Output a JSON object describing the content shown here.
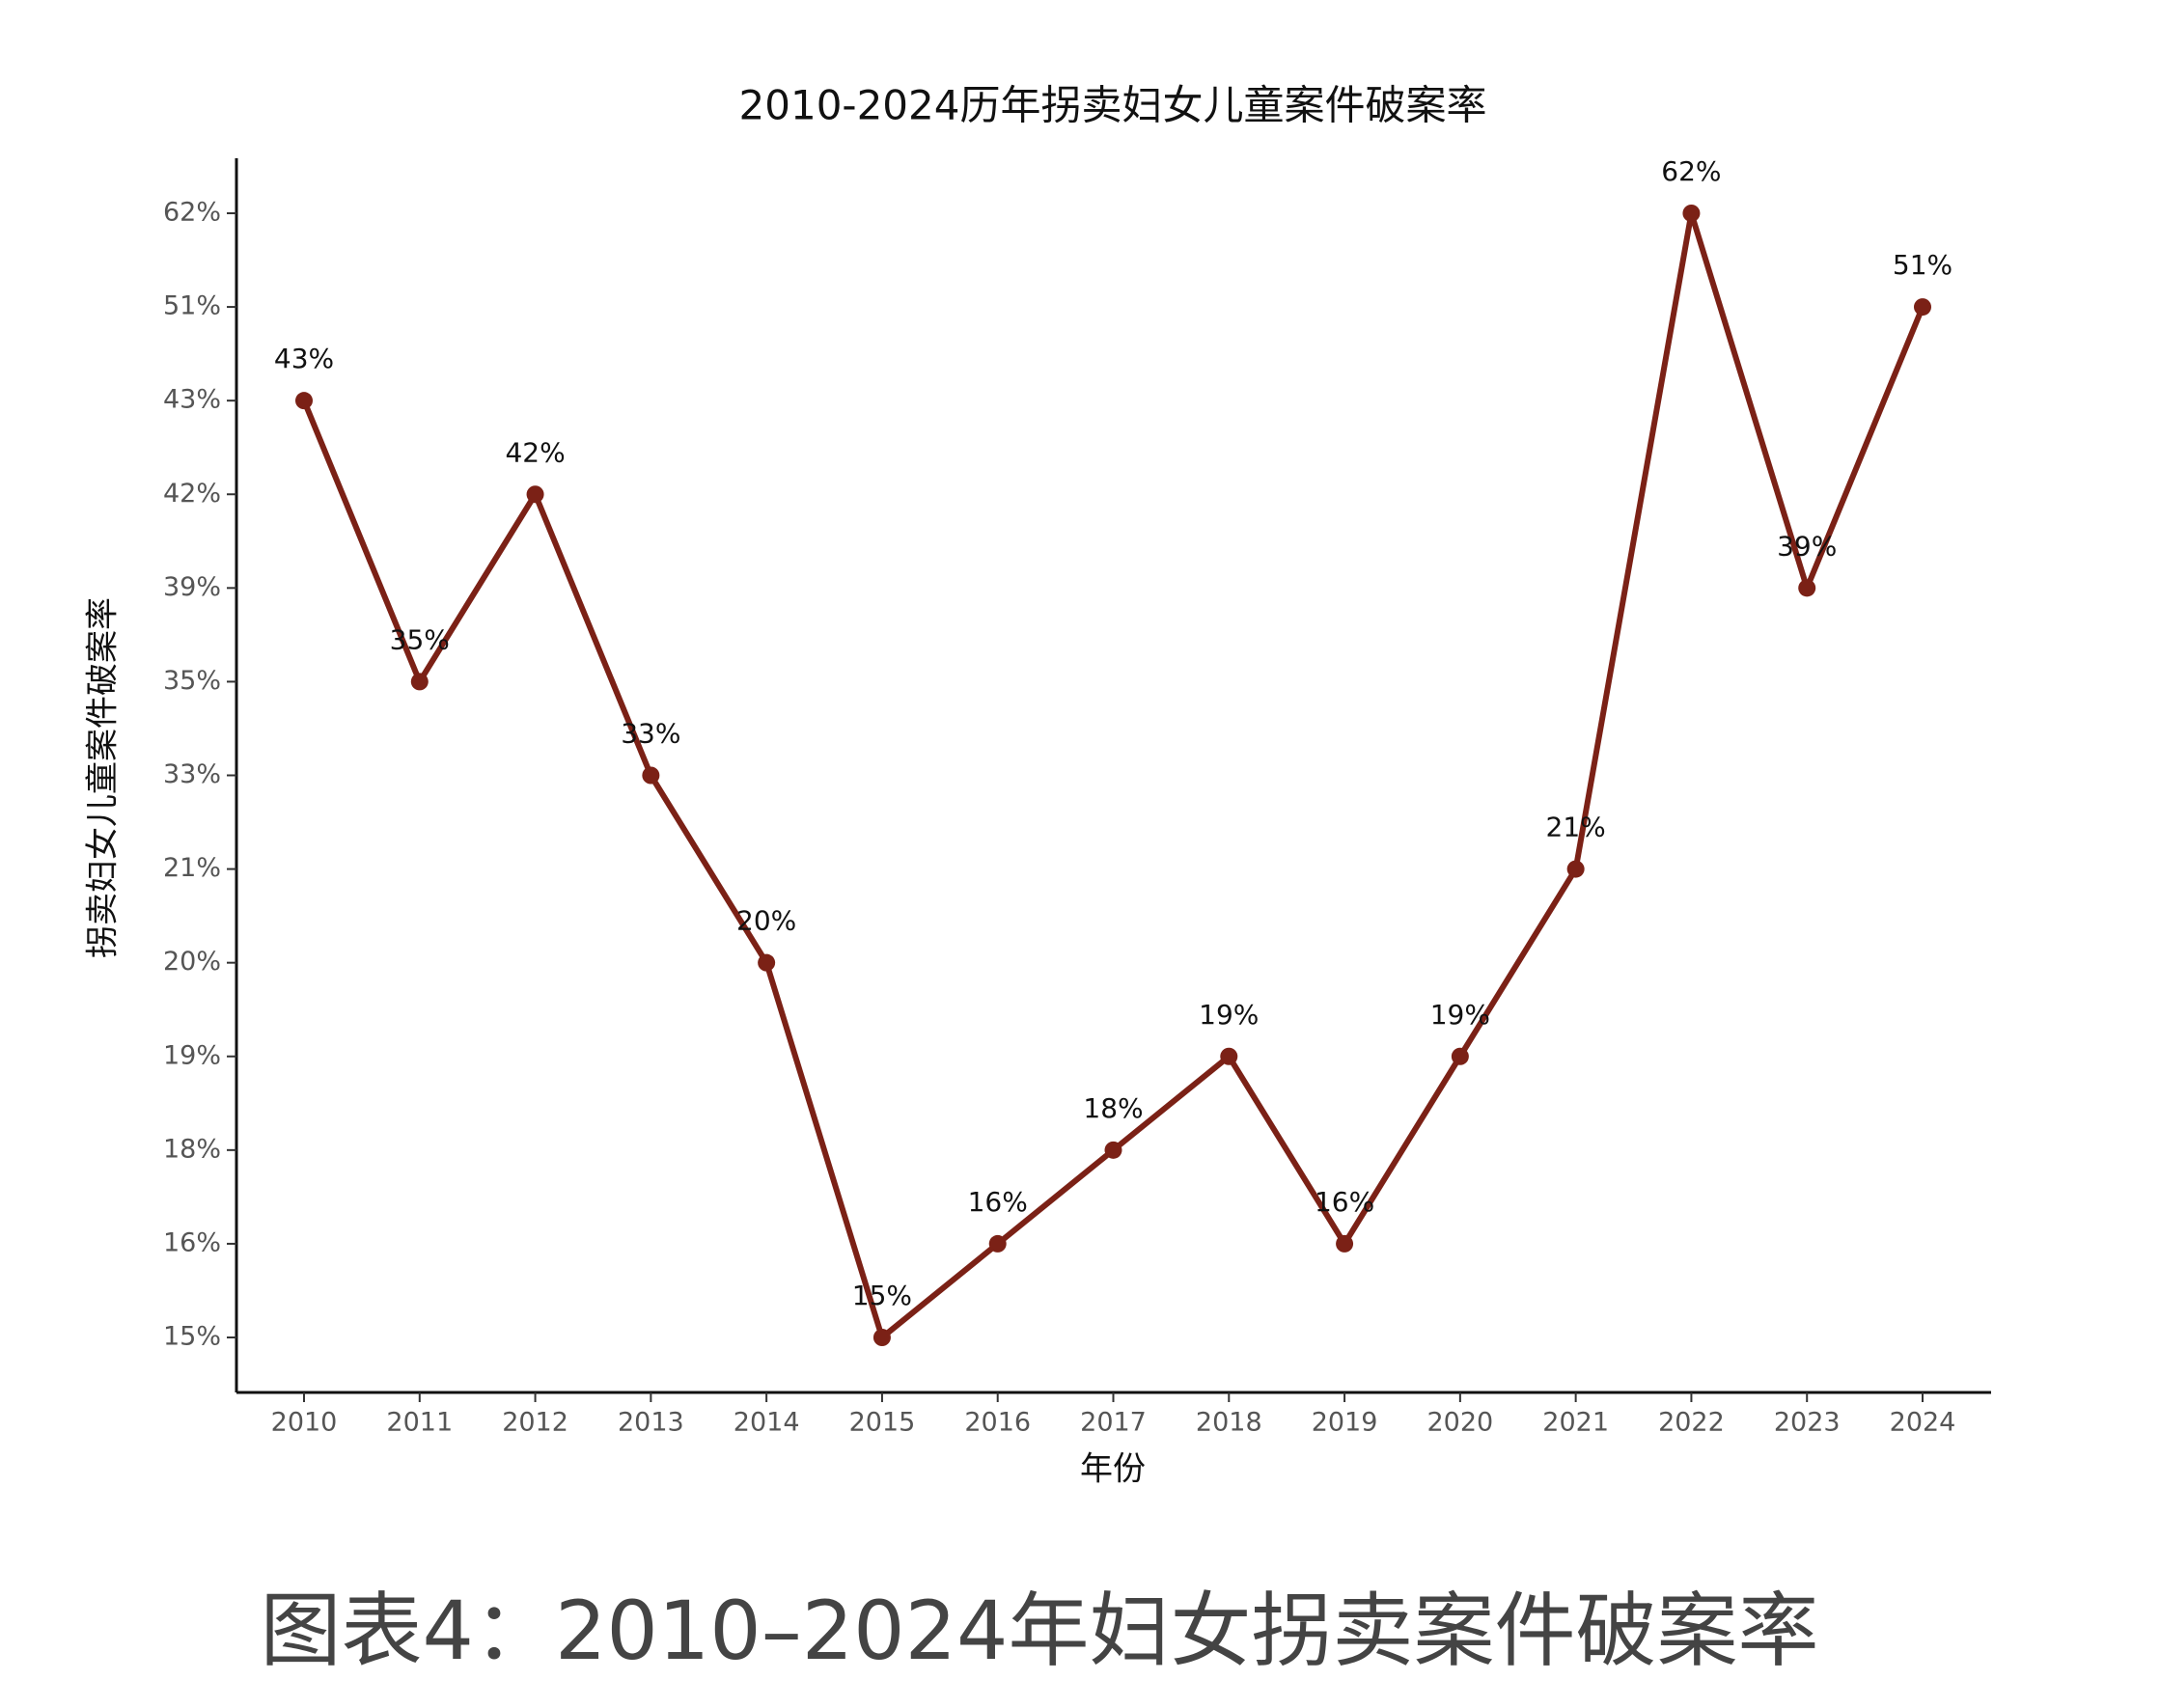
{
  "chart_data": {
    "type": "line",
    "title": "2010-2024历年拐卖妇女儿童案件破案率",
    "x_label": "年份",
    "y_label": "拐卖妇女儿童案件破案率",
    "caption": "图表4：2010–2024年妇女拐卖案件破案率",
    "categories": [
      "2010",
      "2011",
      "2012",
      "2013",
      "2014",
      "2015",
      "2016",
      "2017",
      "2018",
      "2019",
      "2020",
      "2021",
      "2022",
      "2023",
      "2024"
    ],
    "series": [
      {
        "name": "破案率",
        "color": "#7b2116",
        "values": [
          43,
          35,
          42,
          33,
          20,
          15,
          16,
          18,
          19,
          16,
          19,
          21,
          62,
          39,
          51
        ],
        "value_labels": [
          "43%",
          "35%",
          "42%",
          "33%",
          "20%",
          "15%",
          "16%",
          "18%",
          "19%",
          "16%",
          "19%",
          "21%",
          "62%",
          "39%",
          "51%"
        ]
      }
    ],
    "y_scale": "ordinal",
    "yticks": [
      {
        "value": 15,
        "label": "15%"
      },
      {
        "value": 16,
        "label": "16%"
      },
      {
        "value": 18,
        "label": "18%"
      },
      {
        "value": 19,
        "label": "19%"
      },
      {
        "value": 20,
        "label": "20%"
      },
      {
        "value": 21,
        "label": "21%"
      },
      {
        "value": 33,
        "label": "33%"
      },
      {
        "value": 35,
        "label": "35%"
      },
      {
        "value": 39,
        "label": "39%"
      },
      {
        "value": 42,
        "label": "42%"
      },
      {
        "value": 43,
        "label": "43%"
      },
      {
        "value": 51,
        "label": "51%"
      },
      {
        "value": 62,
        "label": "62%"
      }
    ],
    "grid": false
  }
}
